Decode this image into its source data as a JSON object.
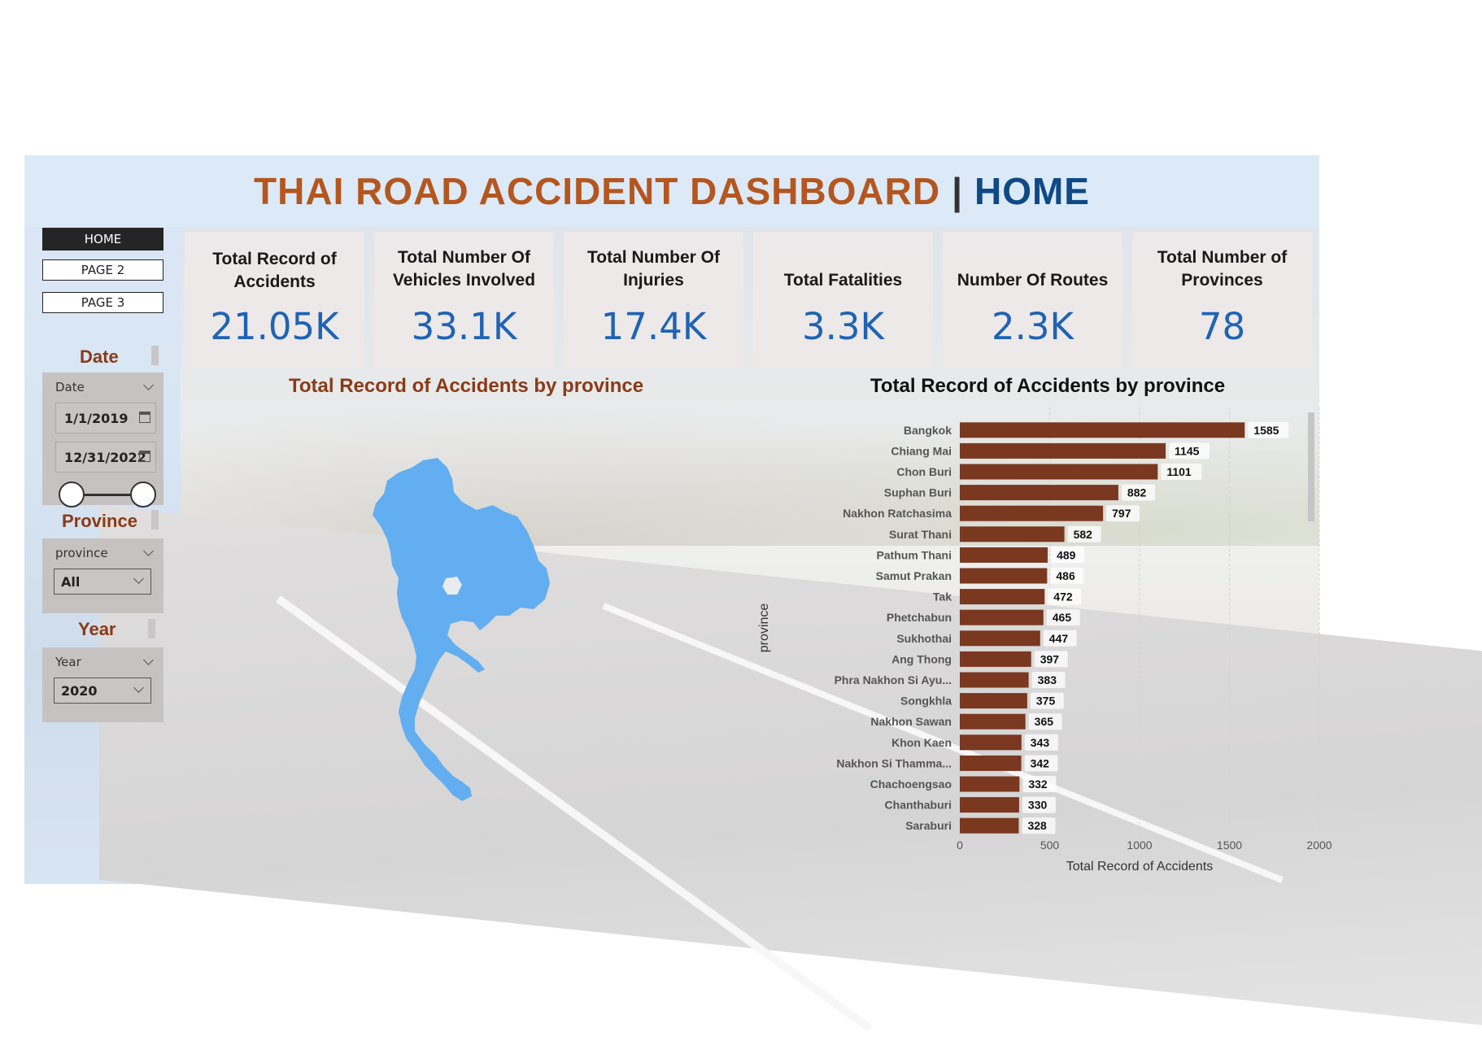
{
  "header": {
    "title_main": "THAI ROAD ACCIDENT DASHBOARD",
    "title_sep": "|",
    "title_page": "HOME"
  },
  "nav": {
    "home": "HOME",
    "page2": "PAGE 2",
    "page3": "PAGE 3"
  },
  "slicers": {
    "date": {
      "title": "Date",
      "label": "Date",
      "start": "1/1/2019",
      "end": "12/31/2022"
    },
    "province": {
      "title": "Province",
      "label": "province",
      "value": "All"
    },
    "year": {
      "title": "Year",
      "label": "Year",
      "value": "2020"
    }
  },
  "kpis": [
    {
      "title": "Total Record of Accidents",
      "value": "21.05K"
    },
    {
      "title": "Total Number Of Vehicles Involved",
      "value": "33.1K"
    },
    {
      "title": "Total Number Of Injuries",
      "value": "17.4K"
    },
    {
      "title": "Total Fatalities",
      "value": "3.3K"
    },
    {
      "title": "Number Of Routes",
      "value": "2.3K"
    },
    {
      "title": "Total Number of Provinces",
      "value": "78"
    }
  ],
  "map_visual": {
    "title": "Total Record of Accidents by province"
  },
  "chart_data": {
    "type": "bar",
    "orientation": "horizontal",
    "title": "Total Record of Accidents by province",
    "xlabel": "Total Record of Accidents",
    "ylabel": "province",
    "xlim": [
      0,
      2000
    ],
    "xticks": [
      "0",
      "500",
      "1000",
      "1500",
      "2000"
    ],
    "categories": [
      "Bangkok",
      "Chiang Mai",
      "Chon Buri",
      "Suphan Buri",
      "Nakhon Ratchasima",
      "Surat Thani",
      "Pathum Thani",
      "Samut Prakan",
      "Tak",
      "Phetchabun",
      "Sukhothai",
      "Ang Thong",
      "Phra Nakhon Si Ayu...",
      "Songkhla",
      "Nakhon Sawan",
      "Khon Kaen",
      "Nakhon Si Thamma...",
      "Chachoengsao",
      "Chanthaburi",
      "Saraburi"
    ],
    "values": [
      1585,
      1145,
      1101,
      882,
      797,
      582,
      489,
      486,
      472,
      465,
      447,
      397,
      383,
      375,
      365,
      343,
      342,
      332,
      330,
      328
    ],
    "bar_color": "#7a3820",
    "map_color": "#62aef0"
  }
}
